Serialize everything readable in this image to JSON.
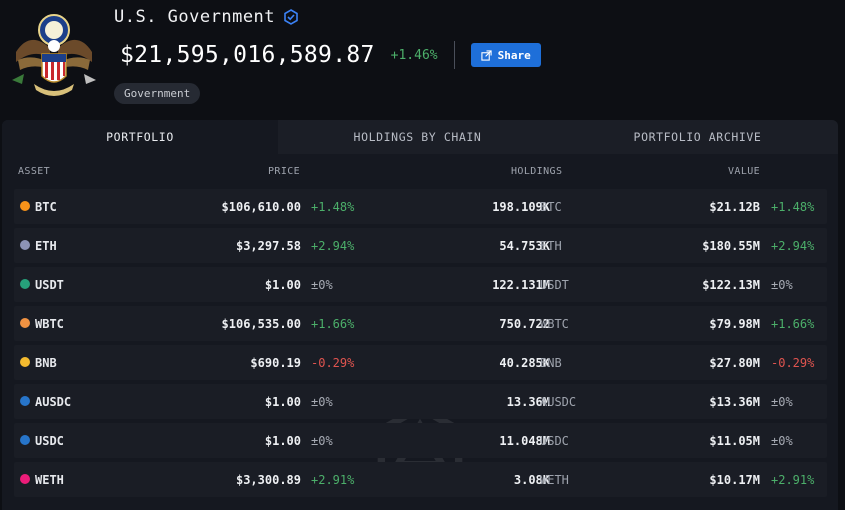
{
  "entity": {
    "name": "U.S. Government",
    "total_value": "$21,595,016,589.87",
    "change": "+1.46%",
    "share_label": "Share",
    "tag": "Government"
  },
  "tabs": [
    {
      "label": "PORTFOLIO",
      "active": true
    },
    {
      "label": "HOLDINGS BY CHAIN",
      "active": false
    },
    {
      "label": "PORTFOLIO ARCHIVE",
      "active": false
    }
  ],
  "columns": {
    "asset": "ASSET",
    "price": "PRICE",
    "holdings": "HOLDINGS",
    "value": "VALUE"
  },
  "rows": [
    {
      "symbol": "BTC",
      "price": "$106,610.00",
      "price_change": "+1.48%",
      "holdings": "198.109K",
      "holdings_symbol": "BTC",
      "value": "$21.12B",
      "value_change": "+1.48%",
      "icon": "bitcoin-icon",
      "icon_color": "#f7931a",
      "trend": "pos"
    },
    {
      "symbol": "ETH",
      "price": "$3,297.58",
      "price_change": "+2.94%",
      "holdings": "54.753K",
      "holdings_symbol": "ETH",
      "value": "$180.55M",
      "value_change": "+2.94%",
      "icon": "ethereum-icon",
      "icon_color": "#8c93b5",
      "trend": "pos"
    },
    {
      "symbol": "USDT",
      "price": "$1.00",
      "price_change": "±0%",
      "holdings": "122.131M",
      "holdings_symbol": "USDT",
      "value": "$122.13M",
      "value_change": "±0%",
      "icon": "tether-icon",
      "icon_color": "#26a17b",
      "trend": "flat"
    },
    {
      "symbol": "WBTC",
      "price": "$106,535.00",
      "price_change": "+1.66%",
      "holdings": "750.722",
      "holdings_symbol": "WBTC",
      "value": "$79.98M",
      "value_change": "+1.66%",
      "icon": "wrapped-bitcoin-icon",
      "icon_color": "#f09242",
      "trend": "pos"
    },
    {
      "symbol": "BNB",
      "price": "$690.19",
      "price_change": "-0.29%",
      "holdings": "40.285K",
      "holdings_symbol": "BNB",
      "value": "$27.80M",
      "value_change": "-0.29%",
      "icon": "bnb-icon",
      "icon_color": "#f3ba2f",
      "trend": "neg"
    },
    {
      "symbol": "AUSDC",
      "price": "$1.00",
      "price_change": "±0%",
      "holdings": "13.36M",
      "holdings_symbol": "AUSDC",
      "value": "$13.36M",
      "value_change": "±0%",
      "icon": "aave-usdc-icon",
      "icon_color": "#2775ca",
      "trend": "flat"
    },
    {
      "symbol": "USDC",
      "price": "$1.00",
      "price_change": "±0%",
      "holdings": "11.048M",
      "holdings_symbol": "USDC",
      "value": "$11.05M",
      "value_change": "±0%",
      "icon": "usdc-icon",
      "icon_color": "#2775ca",
      "trend": "flat"
    },
    {
      "symbol": "WETH",
      "price": "$3,300.89",
      "price_change": "+2.91%",
      "holdings": "3.08K",
      "holdings_symbol": "WETH",
      "value": "$10.17M",
      "value_change": "+2.91%",
      "icon": "weth-icon",
      "icon_color": "#ec1c79",
      "trend": "pos"
    }
  ],
  "colors": {
    "positive": "#4caf6a",
    "negative": "#e0544f",
    "accent": "#1e6fd9"
  }
}
